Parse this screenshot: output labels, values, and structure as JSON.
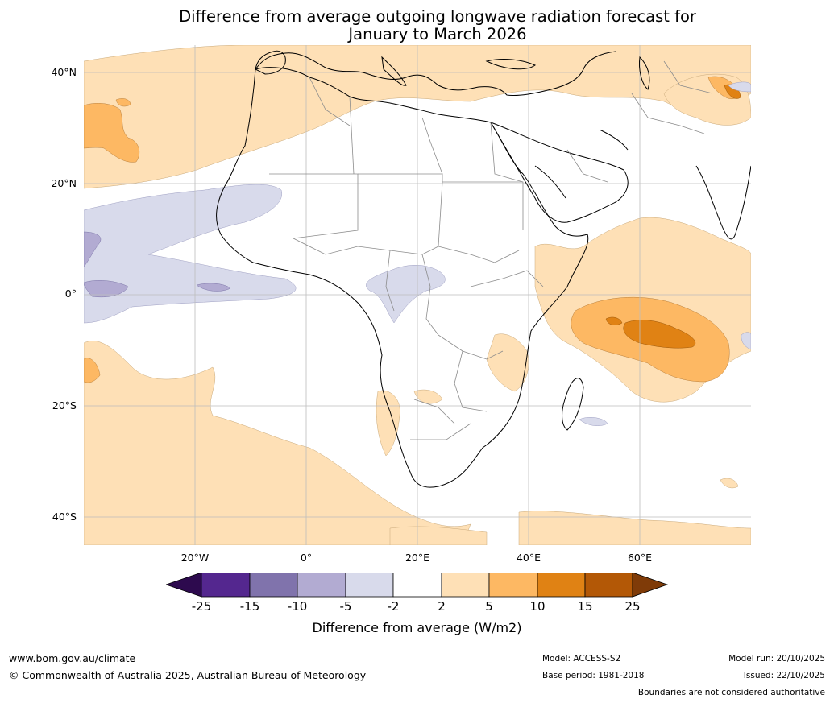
{
  "title": {
    "line1": "Difference from average outgoing longwave radiation forecast for",
    "line2": "January to March 2026"
  },
  "map": {
    "lat_labels": [
      "40°N",
      "20°N",
      "0°",
      "20°S",
      "40°S"
    ],
    "lon_labels": [
      "20°W",
      "0°",
      "20°E",
      "40°E",
      "60°E"
    ],
    "extent": {
      "lon_min": -40,
      "lon_max": 80,
      "lat_min": -45,
      "lat_max": 45
    }
  },
  "colorbar": {
    "ticks": [
      "-25",
      "-15",
      "-10",
      "-5",
      "-2",
      "2",
      "5",
      "10",
      "15",
      "25"
    ],
    "label": "Difference from average (W/m2)",
    "colors": {
      "below_-25": "#2d0a4e",
      "-25_-15": "#54278f",
      "-15_-10": "#8073ac",
      "-10_-5": "#b2abd2",
      "-5_-2": "#d8daeb",
      "-2_2": "#ffffff",
      "2_5": "#fee0b6",
      "5_10": "#fdb863",
      "10_15": "#e08214",
      "15_25": "#b35806",
      "above_25": "#7f3b08"
    }
  },
  "footer": {
    "website": "www.bom.gov.au/climate",
    "copyright": "© Commonwealth of Australia 2025, Australian Bureau of Meteorology",
    "model": "Model: ACCESS-S2",
    "base_period": "Base period: 1981-2018",
    "model_run": "Model run: 20/10/2025",
    "issued": "Issued: 22/10/2025",
    "disclaimer": "Boundaries are not considered authoritative"
  }
}
